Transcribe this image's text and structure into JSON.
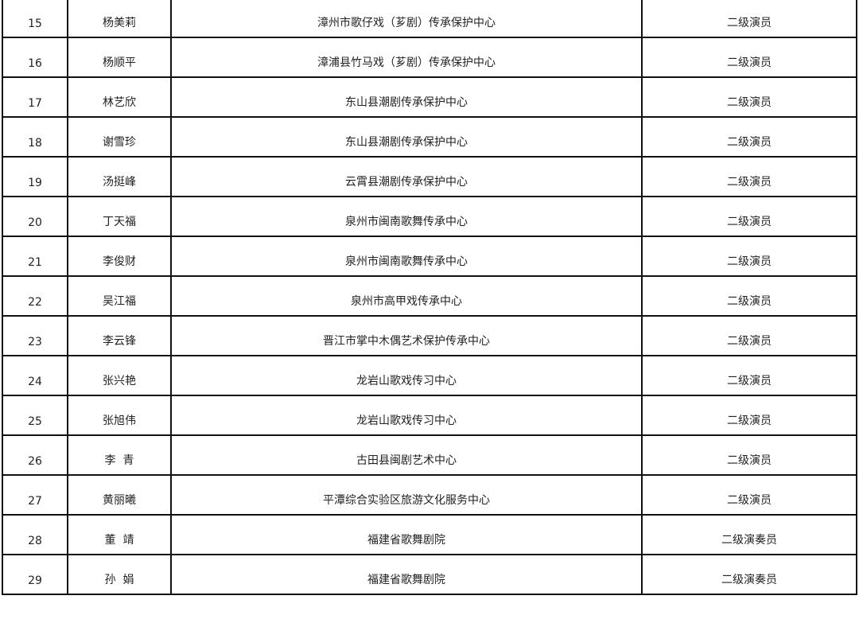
{
  "table": {
    "rows": [
      {
        "no": "15",
        "name": "杨美莉",
        "unit": "漳州市歌仔戏（芗剧）传承保护中心",
        "title": "二级演员"
      },
      {
        "no": "16",
        "name": "杨顺平",
        "unit": "漳浦县竹马戏（芗剧）传承保护中心",
        "title": "二级演员"
      },
      {
        "no": "17",
        "name": "林艺欣",
        "unit": "东山县潮剧传承保护中心",
        "title": "二级演员"
      },
      {
        "no": "18",
        "name": "谢雪珍",
        "unit": "东山县潮剧传承保护中心",
        "title": "二级演员"
      },
      {
        "no": "19",
        "name": "汤挺峰",
        "unit": "云霄县潮剧传承保护中心",
        "title": "二级演员"
      },
      {
        "no": "20",
        "name": "丁天福",
        "unit": "泉州市闽南歌舞传承中心",
        "title": "二级演员"
      },
      {
        "no": "21",
        "name": "李俊财",
        "unit": "泉州市闽南歌舞传承中心",
        "title": "二级演员"
      },
      {
        "no": "22",
        "name": "吴江福",
        "unit": "泉州市高甲戏传承中心",
        "title": "二级演员"
      },
      {
        "no": "23",
        "name": "李云锋",
        "unit": "晋江市掌中木偶艺术保护传承中心",
        "title": "二级演员"
      },
      {
        "no": "24",
        "name": "张兴艳",
        "unit": "龙岩山歌戏传习中心",
        "title": "二级演员"
      },
      {
        "no": "25",
        "name": "张旭伟",
        "unit": "龙岩山歌戏传习中心",
        "title": "二级演员"
      },
      {
        "no": "26",
        "name": "李  青",
        "unit": "古田县闽剧艺术中心",
        "title": "二级演员"
      },
      {
        "no": "27",
        "name": "黄丽曦",
        "unit": "平潭综合实验区旅游文化服务中心",
        "title": "二级演员"
      },
      {
        "no": "28",
        "name": "董  靖",
        "unit": "福建省歌舞剧院",
        "title": "二级演奏员"
      },
      {
        "no": "29",
        "name": "孙  娟",
        "unit": "福建省歌舞剧院",
        "title": "二级演奏员"
      }
    ]
  }
}
